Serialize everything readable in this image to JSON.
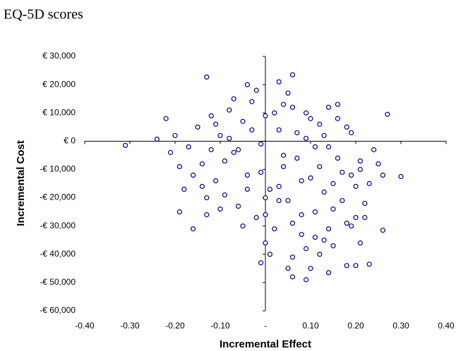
{
  "chart_data": {
    "type": "scatter",
    "title": "EQ-5D scores",
    "x_label": "Incremental Effect",
    "y_label": "Incremental Cost",
    "color": "#00008b",
    "xlim": [
      -0.4,
      0.4
    ],
    "xticks": [
      {
        "value": -0.4,
        "label": "-0.40"
      },
      {
        "value": -0.3,
        "label": "-0.30"
      },
      {
        "value": -0.2,
        "label": "-0.20"
      },
      {
        "value": -0.1,
        "label": "-0.10"
      },
      {
        "value": 0,
        "label": "-"
      },
      {
        "value": 0.1,
        "label": "0.10"
      },
      {
        "value": 0.2,
        "label": "0.20"
      },
      {
        "value": 0.3,
        "label": "0.30"
      },
      {
        "value": 0.4,
        "label": "0.40"
      }
    ],
    "ylim": [
      -60000,
      30000
    ],
    "yticks": [
      {
        "value": 30000,
        "label": "€ 30,000"
      },
      {
        "value": 20000,
        "label": "€ 20,000"
      },
      {
        "value": 10000,
        "label": "€ 10,000"
      },
      {
        "value": 0,
        "label": "€ 0"
      },
      {
        "value": -10000,
        "label": "-€ 10,000"
      },
      {
        "value": -20000,
        "label": "-€ 20,000"
      },
      {
        "value": -30000,
        "label": "-€ 30,000"
      },
      {
        "value": -40000,
        "label": "-€ 40,000"
      },
      {
        "value": -50000,
        "label": "-€ 50,000"
      },
      {
        "value": -60000,
        "label": "-€ 60,000"
      }
    ],
    "x": [
      -0.17,
      -0.15,
      -0.14,
      -0.12,
      -0.11,
      -0.1,
      -0.09,
      -0.08,
      -0.07,
      -0.06,
      -0.05,
      -0.04,
      -0.03,
      -0.02,
      -0.01,
      0.0,
      0.01,
      0.02,
      0.03,
      0.04,
      0.05,
      0.06,
      0.07,
      0.08,
      0.09,
      0.1,
      0.11,
      0.12,
      0.13,
      0.14,
      0.15,
      0.16,
      0.17,
      0.18,
      0.19,
      0.2,
      0.21,
      0.22,
      0.24,
      0.26,
      -0.16,
      -0.13,
      -0.11,
      -0.09,
      -0.07,
      -0.06,
      -0.04,
      -0.03,
      -0.01,
      0.0,
      0.02,
      0.03,
      0.04,
      0.05,
      0.06,
      0.07,
      0.08,
      0.09,
      0.1,
      0.11,
      0.12,
      0.13,
      0.14,
      0.15,
      0.16,
      0.18,
      0.2,
      0.21,
      0.23,
      0.25,
      -0.14,
      -0.12,
      -0.1,
      -0.08,
      -0.05,
      -0.02,
      0.0,
      0.01,
      0.03,
      0.04,
      0.06,
      0.08,
      0.09,
      0.11,
      0.12,
      0.14,
      0.15,
      0.17,
      0.19,
      0.22,
      -0.19,
      -0.18,
      -0.2,
      -0.22,
      -0.21,
      -0.13,
      -0.04,
      0.0,
      0.03,
      0.05,
      0.1,
      0.13,
      0.16,
      0.19,
      0.21,
      -0.31,
      -0.24,
      0.3,
      -0.13,
      0.06,
      0.09,
      0.2,
      0.23,
      0.27,
      -0.16,
      -0.19,
      0.26,
      0.06,
      -0.01,
      0.14,
      0.18
    ],
    "values": [
      -2000,
      5000,
      -8000,
      9000,
      -14000,
      2000,
      -19000,
      11000,
      -4000,
      -23000,
      7000,
      -12000,
      14000,
      -27000,
      -1000,
      9000,
      -17000,
      -31000,
      4000,
      -9000,
      -21000,
      12000,
      -6000,
      -26000,
      1000,
      -13000,
      -34000,
      6000,
      -18000,
      -2000,
      -24000,
      8000,
      -11000,
      -29000,
      3000,
      -16000,
      -7000,
      -22000,
      -3000,
      -12000,
      -12000,
      -20000,
      6000,
      -7000,
      15000,
      -3000,
      -17000,
      4000,
      -11000,
      -36000,
      10000,
      -21000,
      -5000,
      17000,
      -29000,
      3000,
      -14000,
      -38000,
      8000,
      -25000,
      -9000,
      2000,
      -31000,
      -15000,
      -6000,
      5000,
      -27000,
      -10000,
      -15000,
      -8000,
      -16000,
      -3000,
      -24000,
      1000,
      -30000,
      18000,
      -20000,
      -40000,
      -16000,
      13000,
      -41000,
      -33000,
      10000,
      -2000,
      -40000,
      12000,
      -37000,
      -21000,
      -12000,
      -27000,
      -9000,
      -17000,
      2000,
      8000,
      -4000,
      -26000,
      20000,
      -26000,
      21000,
      -45000,
      -45000,
      -35000,
      13000,
      -30000,
      -36000,
      -1500,
      700,
      -12500,
      22700,
      23500,
      -49000,
      -44000,
      -43500,
      9500,
      -31000,
      -25000,
      -31500,
      -48000,
      -43000,
      -46500,
      -44000
    ]
  }
}
